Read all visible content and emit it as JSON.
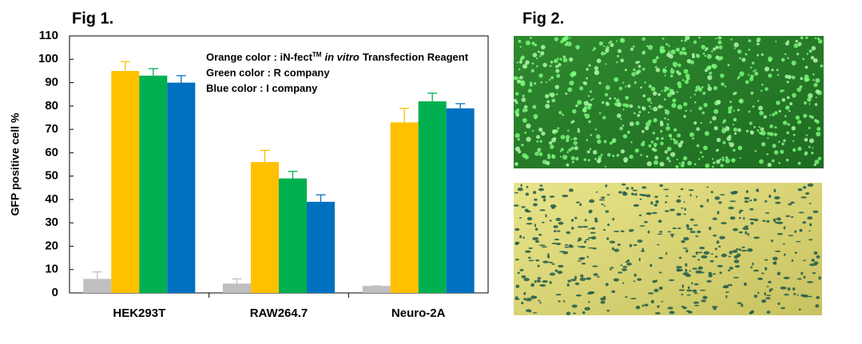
{
  "chart_data": {
    "type": "bar",
    "title": "Fig 1.",
    "ylabel": "GFP positive cell %",
    "categories": [
      "HEK293T",
      "RAW264.7",
      "Neuro-2A"
    ],
    "series": [
      {
        "color": "#bfbfbf",
        "values": [
          6,
          4,
          3
        ],
        "errors": [
          3,
          2,
          0
        ]
      },
      {
        "color": "#ffc000",
        "values": [
          95,
          56,
          73
        ],
        "errors": [
          4,
          5,
          6
        ]
      },
      {
        "color": "#00b050",
        "values": [
          93,
          49,
          82
        ],
        "errors": [
          3,
          3,
          3.5
        ]
      },
      {
        "color": "#0070c0",
        "values": [
          90,
          39,
          79
        ],
        "errors": [
          3,
          3,
          2
        ]
      }
    ],
    "ylim": [
      0,
      110
    ],
    "yticks": [
      0,
      10,
      20,
      30,
      40,
      50,
      60,
      70,
      80,
      90,
      100,
      110
    ],
    "annotations": [
      {
        "parts": [
          {
            "text": "Orange color : iN-fect"
          },
          {
            "text": "TM",
            "style": "sup"
          },
          {
            "text": "in vitro",
            "style": "italic"
          },
          {
            "text": "Transfection Reagent"
          }
        ]
      },
      {
        "parts": [
          {
            "text": "Green color : R company"
          }
        ]
      },
      {
        "parts": [
          {
            "text": "Blue color : I company"
          }
        ]
      }
    ]
  },
  "figure2": {
    "title": "Fig 2."
  }
}
